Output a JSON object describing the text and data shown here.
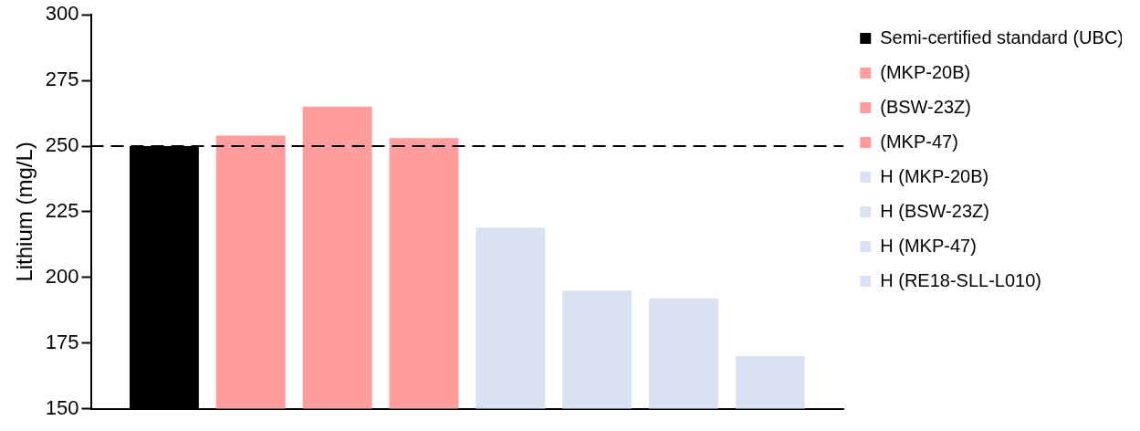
{
  "chart_data": {
    "type": "bar",
    "ylabel": "Lithium (mg/L)",
    "categories": [
      null
    ],
    "series": [
      {
        "name": "Semi-certified standard (UBC)",
        "color": "#000000",
        "values": [
          250
        ]
      },
      {
        "name": "(MKP-20B)",
        "color": "#ff9c9c",
        "values": [
          254
        ]
      },
      {
        "name": "(BSW-23Z)",
        "color": "#ff9c9c",
        "values": [
          265
        ]
      },
      {
        "name": "(MKP-47)",
        "color": "#ff9c9c",
        "values": [
          253
        ]
      },
      {
        "name": "H (MKP-20B)",
        "color": "#d9e1f2",
        "values": [
          219
        ]
      },
      {
        "name": "H (BSW-23Z)",
        "color": "#d9e1f2",
        "values": [
          195
        ]
      },
      {
        "name": "H (MKP-47)",
        "color": "#d9e1f2",
        "values": [
          192
        ]
      },
      {
        "name": "H (RE18-SLL-L010)",
        "color": "#d9e1f2",
        "values": [
          170
        ]
      }
    ],
    "ylim": [
      150,
      300
    ],
    "yticks": [
      150,
      175,
      200,
      225,
      250,
      275,
      300
    ],
    "ref_lines": [
      {
        "axis": "y",
        "value": 250,
        "line_style": "dashed",
        "color": "#000000"
      }
    ],
    "legend": "right",
    "grid": false
  }
}
